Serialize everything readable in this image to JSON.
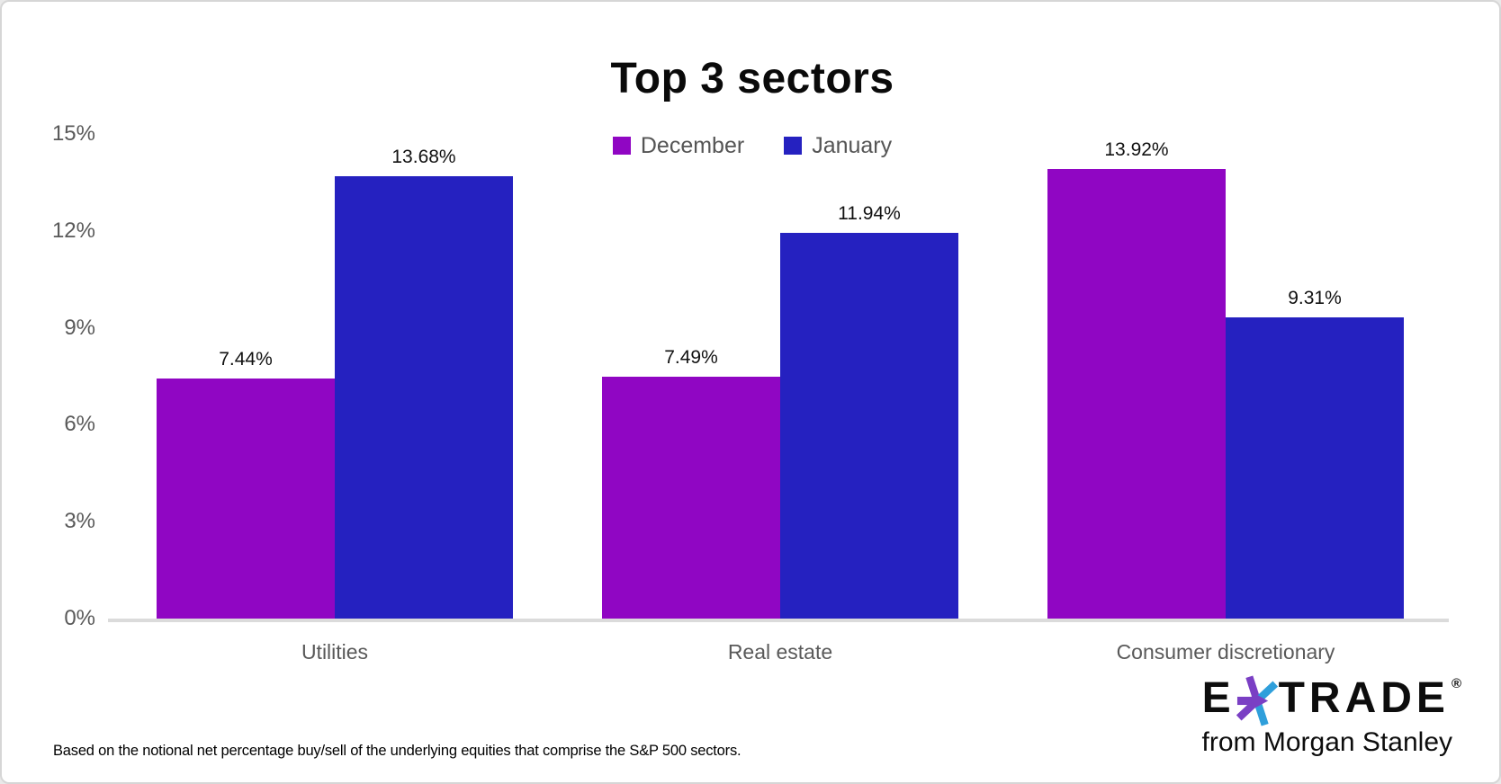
{
  "chart_data": {
    "type": "bar",
    "title": "Top 3 sectors",
    "categories": [
      "Utilities",
      "Real estate",
      "Consumer discretionary"
    ],
    "series": [
      {
        "name": "December",
        "color": "#9006c3",
        "values": [
          7.44,
          7.49,
          13.92
        ]
      },
      {
        "name": "January",
        "color": "#2521c0",
        "values": [
          13.68,
          11.94,
          9.31
        ]
      }
    ],
    "value_label_format": "percent-2dp",
    "data_labels": [
      [
        "7.44%",
        "13.68%"
      ],
      [
        "7.49%",
        "11.94%"
      ],
      [
        "13.92%",
        "9.31%"
      ]
    ],
    "y_ticks": [
      {
        "label": "15%",
        "value": 15
      },
      {
        "label": "12%",
        "value": 12
      },
      {
        "label": "9%",
        "value": 9
      },
      {
        "label": "6%",
        "value": 6
      },
      {
        "label": "3%",
        "value": 3
      },
      {
        "label": "0%",
        "value": 0
      }
    ],
    "ylim": [
      0,
      15
    ],
    "xlabel": "",
    "ylabel": "",
    "grid": false,
    "legend_position": "top-center"
  },
  "footnote": "Based on the notional net percentage buy/sell of the underlying equities that comprise the S&P 500 sectors.",
  "logo": {
    "brand_left": "E",
    "brand_right": "TRADE",
    "registered_mark": "®",
    "tagline": "from Morgan Stanley",
    "asterisk_purple": "#7a3fc4",
    "asterisk_blue": "#2f9fdb"
  },
  "colors": {
    "december": "#9006c3",
    "january": "#2521c0",
    "axis_line": "#dbdbdb",
    "tick_text": "#595959",
    "label_text": "#111111"
  }
}
